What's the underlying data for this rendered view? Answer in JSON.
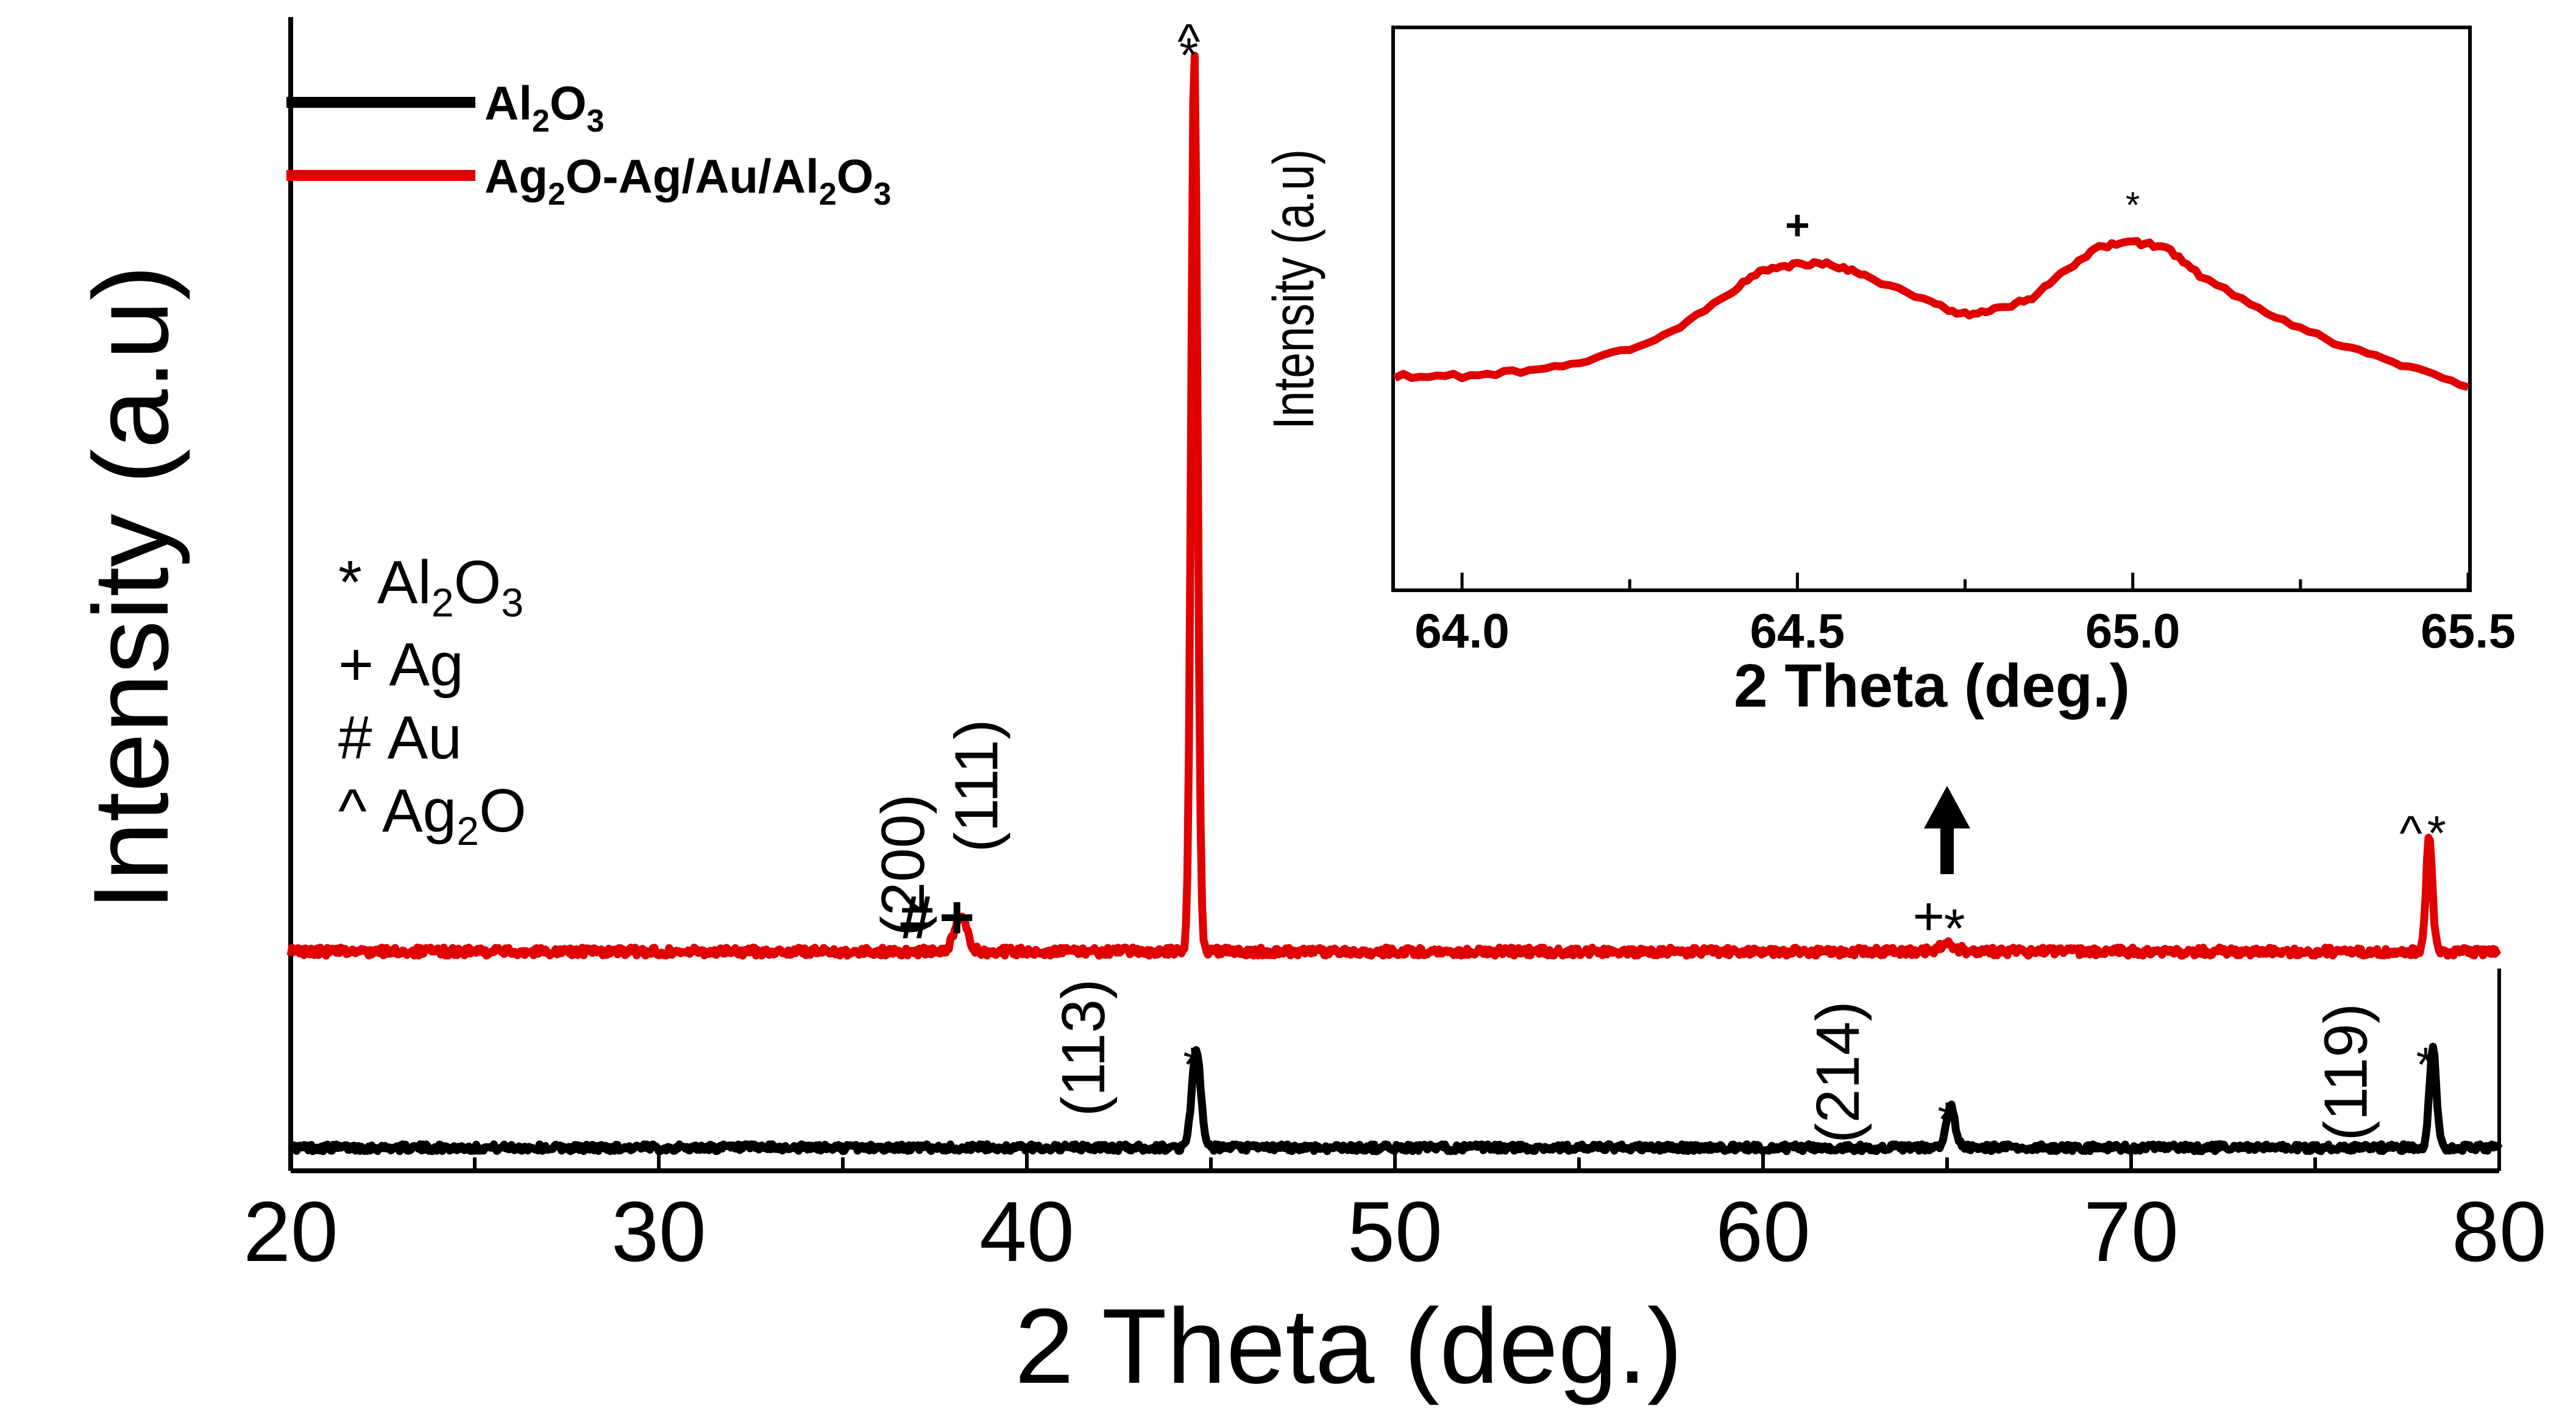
{
  "chart_data": [
    {
      "type": "line",
      "title": "",
      "xlabel": "2 Theta (deg.)",
      "ylabel": "Intensity (a.u)",
      "xlim": [
        20,
        80
      ],
      "ylim": [
        0,
        1
      ],
      "x_ticks": [
        "20",
        "30",
        "40",
        "50",
        "60",
        "70",
        "80"
      ],
      "grid": false,
      "legend": {
        "placement": "top-left",
        "entries": [
          {
            "label_main": "Al",
            "sub1": "2",
            "mid": "O",
            "sub2": "3",
            "tail": "",
            "color": "#000000"
          },
          {
            "label_main": "Ag",
            "sub1": "2",
            "mid": "O-Ag/Au/Al",
            "sub2": "2",
            "mid2": "O",
            "sub3": "3",
            "color": "#e00000"
          }
        ]
      },
      "key": [
        {
          "symbol": "*",
          "name": "Al",
          "sub": "2",
          "name2": "O",
          "sub2": "3"
        },
        {
          "symbol": "+",
          "name": "Ag",
          "sub": "",
          "name2": "",
          "sub2": ""
        },
        {
          "symbol": "#",
          "name": "Au",
          "sub": "",
          "name2": "",
          "sub2": ""
        },
        {
          "symbol": "^",
          "name": "Ag",
          "sub": "2",
          "name2": "O",
          "sub2": ""
        }
      ],
      "series": [
        {
          "name": "Al2O3",
          "color": "#000000",
          "baseline": 0.02,
          "peaks": [
            {
              "x": 44.6,
              "height": 0.085,
              "width": 0.25
            },
            {
              "x": 65.1,
              "height": 0.035,
              "width": 0.25
            },
            {
              "x": 78.2,
              "height": 0.085,
              "width": 0.2
            }
          ]
        },
        {
          "name": "Ag2O-Ag/Au/Al2O3",
          "color": "#e00000",
          "baseline": 0.19,
          "peaks": [
            {
              "x": 38.2,
              "height": 0.03,
              "width": 0.35
            },
            {
              "x": 44.55,
              "height": 0.78,
              "width": 0.18
            },
            {
              "x": 65.0,
              "height": 0.006,
              "width": 0.5
            },
            {
              "x": 78.1,
              "height": 0.1,
              "width": 0.18
            }
          ]
        }
      ],
      "peak_annotations": [
        {
          "text": "(200)",
          "x": 37.2
        },
        {
          "text": "(111)",
          "x": 39.2
        },
        {
          "text": "#",
          "x": 37.0
        },
        {
          "text": "+",
          "x": 38.1
        },
        {
          "text": "^",
          "x": 44.4
        },
        {
          "text": "*",
          "x": 44.4
        },
        {
          "text": "+",
          "x": 64.5
        },
        {
          "text": "*",
          "x": 65.2
        },
        {
          "text": "^",
          "x": 77.6
        },
        {
          "text": "*",
          "x": 78.3
        },
        {
          "text": "(113)",
          "x": 42.1
        },
        {
          "text": "*",
          "x": 44.5
        },
        {
          "text": "(214)",
          "x": 62.6
        },
        {
          "text": "*",
          "x": 65.0
        },
        {
          "text": "(119)",
          "x": 76.4
        },
        {
          "text": "*",
          "x": 78.0
        }
      ],
      "arrow": {
        "x": 65.0,
        "direction": "up"
      }
    },
    {
      "type": "line",
      "title": "",
      "inset": true,
      "xlabel": "2 Theta (deg.)",
      "ylabel": "Intensity (a.u)",
      "xlim": [
        63.9,
        65.5
      ],
      "x_ticks": [
        "64.0",
        "64.5",
        "65.0",
        "65.5"
      ],
      "series": [
        {
          "name": "Ag2O-Ag/Au/Al2O3",
          "color": "#e00000",
          "x": [
            63.9,
            64.0,
            64.1,
            64.2,
            64.3,
            64.4,
            64.45,
            64.5,
            64.55,
            64.6,
            64.7,
            64.75,
            64.8,
            64.85,
            64.9,
            64.95,
            65.0,
            65.05,
            65.1,
            65.2,
            65.3,
            65.4,
            65.5
          ],
          "y": [
            0.38,
            0.38,
            0.39,
            0.41,
            0.45,
            0.53,
            0.57,
            0.58,
            0.58,
            0.56,
            0.51,
            0.49,
            0.5,
            0.52,
            0.57,
            0.61,
            0.62,
            0.61,
            0.56,
            0.49,
            0.44,
            0.4,
            0.36
          ]
        }
      ],
      "peak_annotations": [
        {
          "text": "+",
          "x": 64.5
        },
        {
          "text": "*",
          "x": 65.0
        }
      ]
    }
  ]
}
